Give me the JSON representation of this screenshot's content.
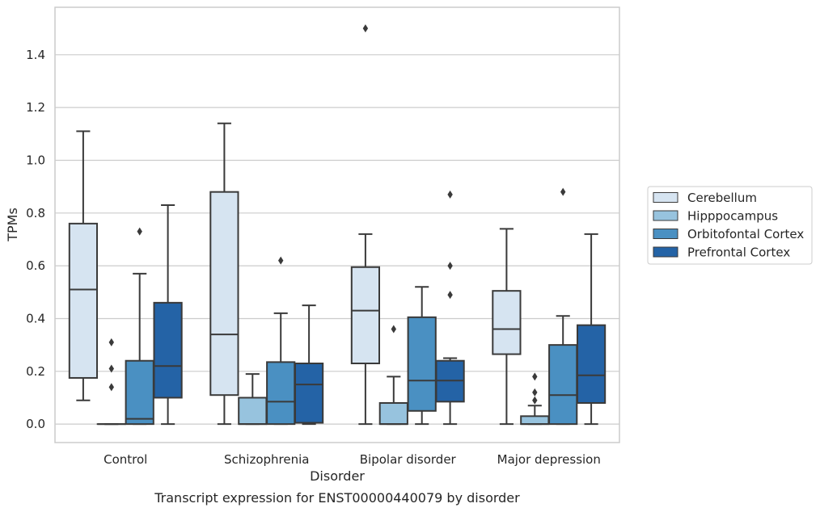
{
  "chart_data": {
    "type": "box",
    "title": "",
    "caption": "Transcript expression for ENST00000440079 by disorder",
    "xlabel": "Disorder",
    "ylabel": "TPMs",
    "ylim": [
      -0.07,
      1.58
    ],
    "yticks": [
      "0.0",
      "0.2",
      "0.4",
      "0.6",
      "0.8",
      "1.0",
      "1.2",
      "1.4"
    ],
    "grid": "horizontal",
    "legend_position": "right",
    "categories": [
      "Control",
      "Schizophrenia",
      "Bipolar disorder",
      "Major depression"
    ],
    "series": [
      {
        "name": "Cerebellum",
        "color": "#d6e4f1",
        "boxes": [
          {
            "whislo": 0.09,
            "q1": 0.175,
            "med": 0.51,
            "q3": 0.76,
            "whishi": 1.11,
            "fliers": []
          },
          {
            "whislo": 0.0,
            "q1": 0.11,
            "med": 0.34,
            "q3": 0.88,
            "whishi": 1.14,
            "fliers": []
          },
          {
            "whislo": 0.0,
            "q1": 0.23,
            "med": 0.43,
            "q3": 0.595,
            "whishi": 0.72,
            "fliers": [
              1.5
            ]
          },
          {
            "whislo": 0.0,
            "q1": 0.265,
            "med": 0.36,
            "q3": 0.505,
            "whishi": 0.74,
            "fliers": []
          }
        ]
      },
      {
        "name": "Hipppocampus",
        "color": "#97c3de",
        "boxes": [
          {
            "whislo": 0.0,
            "q1": 0.0,
            "med": 0.0,
            "q3": 0.0,
            "whishi": 0.0,
            "fliers": [
              0.14,
              0.21,
              0.31
            ]
          },
          {
            "whislo": 0.0,
            "q1": 0.0,
            "med": 0.0,
            "q3": 0.1,
            "whishi": 0.19,
            "fliers": []
          },
          {
            "whislo": 0.0,
            "q1": 0.0,
            "med": 0.0,
            "q3": 0.08,
            "whishi": 0.18,
            "fliers": [
              0.36
            ]
          },
          {
            "whislo": 0.0,
            "q1": 0.0,
            "med": 0.0,
            "q3": 0.03,
            "whishi": 0.07,
            "fliers": [
              0.09,
              0.12,
              0.18
            ]
          }
        ]
      },
      {
        "name": "Orbitofontal Cortex",
        "color": "#4a90c2",
        "boxes": [
          {
            "whislo": 0.0,
            "q1": 0.0,
            "med": 0.02,
            "q3": 0.24,
            "whishi": 0.57,
            "fliers": [
              0.73
            ]
          },
          {
            "whislo": 0.0,
            "q1": 0.0,
            "med": 0.085,
            "q3": 0.235,
            "whishi": 0.42,
            "fliers": [
              0.62
            ]
          },
          {
            "whislo": 0.0,
            "q1": 0.05,
            "med": 0.165,
            "q3": 0.405,
            "whishi": 0.52,
            "fliers": []
          },
          {
            "whislo": 0.0,
            "q1": 0.0,
            "med": 0.11,
            "q3": 0.3,
            "whishi": 0.41,
            "fliers": [
              0.88
            ]
          }
        ]
      },
      {
        "name": "Prefrontal Cortex",
        "color": "#2463a6",
        "boxes": [
          {
            "whislo": 0.0,
            "q1": 0.1,
            "med": 0.22,
            "q3": 0.46,
            "whishi": 0.83,
            "fliers": []
          },
          {
            "whislo": 0.0,
            "q1": 0.005,
            "med": 0.15,
            "q3": 0.23,
            "whishi": 0.45,
            "fliers": []
          },
          {
            "whislo": 0.0,
            "q1": 0.085,
            "med": 0.165,
            "q3": 0.24,
            "whishi": 0.25,
            "fliers": [
              0.49,
              0.6,
              0.87
            ]
          },
          {
            "whislo": 0.0,
            "q1": 0.08,
            "med": 0.185,
            "q3": 0.375,
            "whishi": 0.72,
            "fliers": []
          }
        ]
      }
    ]
  }
}
